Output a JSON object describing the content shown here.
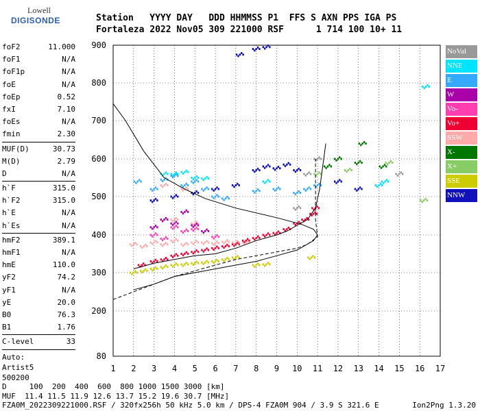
{
  "logo": {
    "top": "Lowell",
    "bottom": "DIGISONDE"
  },
  "header": {
    "line1": "Station   YYYY DAY   DDD HHMMSS P1  FFS S AXN PPS IGA PS",
    "line2": "Fortaleza 2022 Nov05 309 221000 RSF      1 714 100 10+ 11"
  },
  "params": {
    "group1": [
      {
        "name": "foF2",
        "value": "11.000"
      },
      {
        "name": "foF1",
        "value": "N/A"
      },
      {
        "name": "foF1p",
        "value": "N/A"
      },
      {
        "name": "foE",
        "value": "N/A"
      },
      {
        "name": "foEp",
        "value": "0.52"
      },
      {
        "name": "fxI",
        "value": "7.10"
      },
      {
        "name": "foEs",
        "value": "N/A"
      },
      {
        "name": "fmin",
        "value": "2.30"
      }
    ],
    "group2": [
      {
        "name": "MUF(D)",
        "value": "30.73"
      },
      {
        "name": "M(D)",
        "value": "2.79"
      },
      {
        "name": "D",
        "value": "N/A"
      }
    ],
    "group3": [
      {
        "name": "h`F",
        "value": "315.0"
      },
      {
        "name": "h`F2",
        "value": "315.0"
      },
      {
        "name": "h`E",
        "value": "N/A"
      },
      {
        "name": "h`Es",
        "value": "N/A"
      }
    ],
    "group4": [
      {
        "name": "hmF2",
        "value": "389.1"
      },
      {
        "name": "hmF1",
        "value": "N/A"
      },
      {
        "name": "hmE",
        "value": "110.0"
      },
      {
        "name": "yF2",
        "value": "74.2"
      },
      {
        "name": "yF1",
        "value": "N/A"
      },
      {
        "name": "yE",
        "value": "20.0"
      },
      {
        "name": "B0",
        "value": "76.3"
      },
      {
        "name": "B1",
        "value": "1.76"
      }
    ],
    "group5": [
      {
        "name": "C-level",
        "value": "33"
      }
    ],
    "auto": [
      "Auto:",
      "Artist5",
      "500200"
    ]
  },
  "legend": [
    {
      "label": "NoVal",
      "color": "#999999"
    },
    {
      "label": "NNE",
      "color": "#00e5ff"
    },
    {
      "label": "E",
      "color": "#33aaff"
    },
    {
      "label": "W",
      "color": "#aa00aa"
    },
    {
      "label": "Vo-",
      "color": "#ff3fb0"
    },
    {
      "label": "Vo+",
      "color": "#ee0033"
    },
    {
      "label": "SSW",
      "color": "#ffaaaa"
    },
    {
      "label": "X-",
      "color": "#007700"
    },
    {
      "label": "X+",
      "color": "#88cc66"
    },
    {
      "label": "SSE",
      "color": "#cccc00"
    },
    {
      "label": "NNW",
      "color": "#1111bb"
    }
  ],
  "bottom": {
    "line1": "D     100  200  400  600  800 1000 1500 3000 [km]",
    "line2": "MUF  11.4 11.5 11.9 12.6 13.7 15.2 19.6 30.7 [MHz]",
    "line3": "FZA0M_2022309221000.RSF / 320fx256h 50 kHz 5.0 km / DPS-4 FZA0M 904 / 3.9 S 321.6 E",
    "version": "Ion2Png 1.3.20"
  },
  "chart_data": {
    "type": "scatter",
    "title": "",
    "xlabel": "",
    "ylabel": "",
    "xlim": [
      1,
      17
    ],
    "ylim": [
      80,
      900
    ],
    "x_ticks": [
      1,
      2,
      3,
      4,
      5,
      6,
      7,
      8,
      9,
      10,
      11,
      12,
      13,
      14,
      15,
      16,
      17
    ],
    "y_ticks": [
      80,
      200,
      300,
      400,
      500,
      600,
      700,
      800,
      900
    ],
    "grid": true,
    "legend_position": "right",
    "series": [
      {
        "name": "SSE",
        "color": "#cccc00",
        "points": [
          [
            2.0,
            300
          ],
          [
            2.5,
            305
          ],
          [
            3.0,
            310
          ],
          [
            3.5,
            315
          ],
          [
            4.0,
            320
          ],
          [
            4.5,
            322
          ],
          [
            5.0,
            325
          ],
          [
            5.5,
            327
          ],
          [
            6.0,
            330
          ],
          [
            6.5,
            335
          ],
          [
            7.0,
            340
          ],
          [
            8.0,
            320
          ],
          [
            8.5,
            322
          ],
          [
            10.7,
            340
          ]
        ]
      },
      {
        "name": "Vo+",
        "color": "#ee0033",
        "points": [
          [
            2.4,
            320
          ],
          [
            3.0,
            330
          ],
          [
            3.5,
            335
          ],
          [
            4.0,
            345
          ],
          [
            4.5,
            350
          ],
          [
            5.0,
            355
          ],
          [
            5.5,
            360
          ],
          [
            6.0,
            365
          ],
          [
            6.5,
            370
          ],
          [
            7.0,
            375
          ],
          [
            7.5,
            385
          ],
          [
            8.0,
            392
          ],
          [
            8.5,
            400
          ],
          [
            9.0,
            405
          ],
          [
            9.5,
            415
          ],
          [
            10.0,
            430
          ],
          [
            10.4,
            440
          ],
          [
            10.8,
            455
          ],
          [
            10.9,
            470
          ]
        ]
      },
      {
        "name": "SSW",
        "color": "#ffaaaa",
        "points": [
          [
            2.0,
            375
          ],
          [
            2.5,
            370
          ],
          [
            3.0,
            380
          ],
          [
            3.5,
            375
          ],
          [
            4.0,
            385
          ],
          [
            4.5,
            375
          ],
          [
            5.0,
            380
          ],
          [
            5.5,
            380
          ],
          [
            6.0,
            378
          ],
          [
            6.5,
            382
          ],
          [
            7.0,
            380
          ],
          [
            4.0,
            440
          ],
          [
            5.0,
            430
          ],
          [
            7.5,
            380
          ],
          [
            3.5,
            530
          ],
          [
            4.5,
            520
          ]
        ]
      },
      {
        "name": "Vo-",
        "color": "#ff3fb0",
        "points": [
          [
            3.0,
            400
          ],
          [
            4.0,
            420
          ],
          [
            4.5,
            410
          ],
          [
            5.0,
            415
          ],
          [
            3.5,
            390
          ],
          [
            6.0,
            395
          ]
        ]
      },
      {
        "name": "W",
        "color": "#aa00aa",
        "points": [
          [
            3.0,
            420
          ],
          [
            3.5,
            440
          ],
          [
            4.0,
            430
          ],
          [
            4.5,
            460
          ],
          [
            5.0,
            425
          ],
          [
            5.5,
            410
          ]
        ]
      },
      {
        "name": "E",
        "color": "#33aaff",
        "points": [
          [
            3.0,
            520
          ],
          [
            3.5,
            545
          ],
          [
            4.0,
            555
          ],
          [
            4.5,
            530
          ],
          [
            5.0,
            540
          ],
          [
            5.5,
            520
          ],
          [
            6.0,
            500
          ],
          [
            6.5,
            495
          ],
          [
            2.2,
            540
          ],
          [
            8.0,
            515
          ],
          [
            9.0,
            520
          ],
          [
            10.0,
            510
          ],
          [
            10.5,
            520
          ],
          [
            11.0,
            530
          ]
        ]
      },
      {
        "name": "NNE",
        "color": "#00e5ff",
        "points": [
          [
            3.5,
            560
          ],
          [
            4.0,
            560
          ],
          [
            4.5,
            565
          ],
          [
            5.0,
            550
          ],
          [
            5.5,
            548
          ],
          [
            8.5,
            540
          ],
          [
            14.0,
            530
          ],
          [
            14.3,
            540
          ],
          [
            16.3,
            790
          ]
        ]
      },
      {
        "name": "NNW",
        "color": "#1111bb",
        "points": [
          [
            3.0,
            490
          ],
          [
            4.0,
            500
          ],
          [
            5.0,
            510
          ],
          [
            6.0,
            520
          ],
          [
            7.0,
            530
          ],
          [
            8.0,
            570
          ],
          [
            8.5,
            580
          ],
          [
            9.0,
            575
          ],
          [
            9.5,
            585
          ],
          [
            10.0,
            570
          ],
          [
            7.2,
            875
          ],
          [
            8.0,
            890
          ],
          [
            8.5,
            895
          ],
          [
            12.0,
            540
          ],
          [
            13.0,
            520
          ]
        ]
      },
      {
        "name": "X-",
        "color": "#007700",
        "points": [
          [
            11.5,
            580
          ],
          [
            12.0,
            600
          ],
          [
            13.0,
            590
          ],
          [
            13.2,
            640
          ],
          [
            14.2,
            580
          ]
        ]
      },
      {
        "name": "X+",
        "color": "#88cc66",
        "points": [
          [
            11.0,
            560
          ],
          [
            12.5,
            570
          ],
          [
            14.5,
            590
          ],
          [
            16.2,
            490
          ]
        ]
      },
      {
        "name": "NoVal",
        "color": "#999999",
        "points": [
          [
            10.0,
            470
          ],
          [
            10.5,
            560
          ],
          [
            11.0,
            600
          ],
          [
            15.0,
            560
          ]
        ]
      }
    ],
    "curves": [
      {
        "name": "profile",
        "style": "solid",
        "points": [
          [
            2.0,
            255
          ],
          [
            3.0,
            270
          ],
          [
            4.0,
            290
          ],
          [
            5.0,
            300
          ],
          [
            6.0,
            310
          ],
          [
            7.0,
            320
          ],
          [
            8.0,
            330
          ],
          [
            9.0,
            345
          ],
          [
            10.0,
            360
          ],
          [
            10.8,
            385
          ],
          [
            11.0,
            400
          ],
          [
            10.8,
            415
          ],
          [
            10.2,
            428
          ],
          [
            9.0,
            445
          ],
          [
            7.0,
            470
          ],
          [
            5.5,
            495
          ],
          [
            4.5,
            520
          ],
          [
            3.5,
            550
          ],
          [
            2.5,
            620
          ],
          [
            1.6,
            700
          ],
          [
            1.0,
            745
          ]
        ]
      },
      {
        "name": "trace",
        "style": "dashed",
        "points": [
          [
            1.0,
            230
          ],
          [
            1.5,
            240
          ],
          [
            2.0,
            250
          ],
          [
            3.0,
            270
          ],
          [
            4.0,
            290
          ],
          [
            5.0,
            305
          ],
          [
            6.0,
            320
          ],
          [
            7.0,
            335
          ],
          [
            8.0,
            345
          ],
          [
            9.0,
            355
          ],
          [
            10.0,
            365
          ],
          [
            10.5,
            375
          ],
          [
            11.0,
            395
          ],
          [
            10.9,
            440
          ],
          [
            10.9,
            560
          ],
          [
            10.9,
            600
          ]
        ]
      },
      {
        "name": "virtual",
        "style": "solid",
        "points": [
          [
            2.0,
            310
          ],
          [
            3.0,
            325
          ],
          [
            4.0,
            335
          ],
          [
            5.0,
            345
          ],
          [
            6.0,
            350
          ],
          [
            7.0,
            365
          ],
          [
            8.0,
            385
          ],
          [
            9.0,
            400
          ],
          [
            9.5,
            410
          ],
          [
            10.0,
            425
          ],
          [
            10.5,
            440
          ],
          [
            10.9,
            470
          ],
          [
            11.1,
            520
          ],
          [
            11.3,
            600
          ],
          [
            11.4,
            640
          ]
        ]
      }
    ]
  }
}
